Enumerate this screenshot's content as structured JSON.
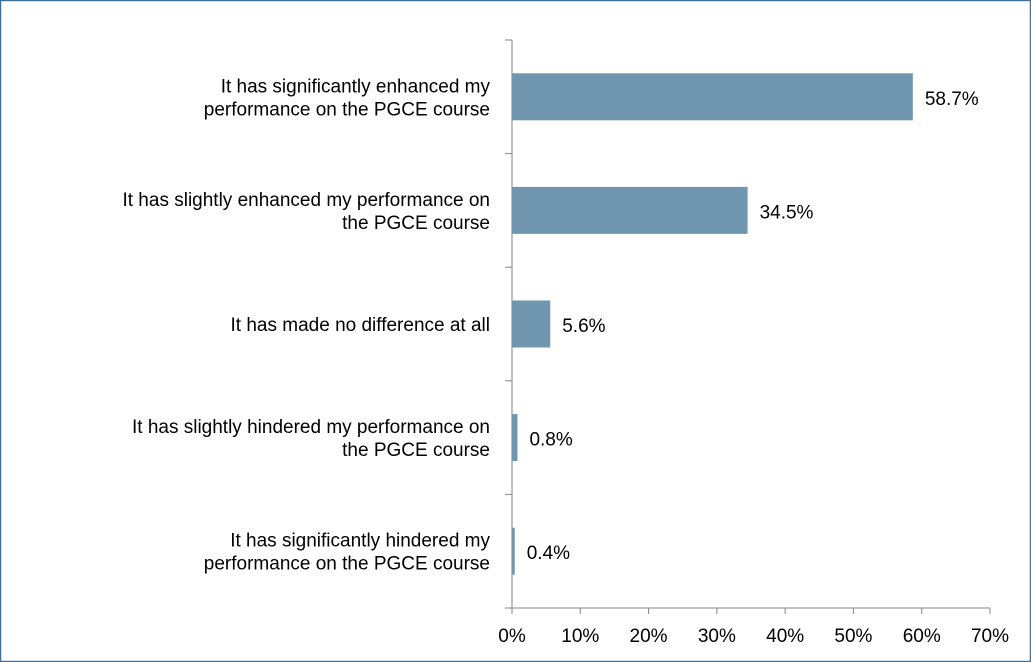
{
  "chart_data": {
    "type": "bar",
    "orientation": "horizontal",
    "categories": [
      "It has significantly enhanced my\nperformance on the PGCE course",
      "It has slightly enhanced my performance on\nthe PGCE course",
      "It has made no difference at all",
      "It has slightly hindered my performance on\nthe PGCE course",
      "It has significantly hindered my\nperformance on the PGCE course"
    ],
    "values": [
      58.7,
      34.5,
      5.6,
      0.8,
      0.4
    ],
    "value_labels": [
      "58.7%",
      "34.5%",
      "5.6%",
      "0.8%",
      "0.4%"
    ],
    "color": "#7196af",
    "xlim": [
      0,
      70
    ],
    "xticks": [
      {
        "value": 0,
        "label": "0%"
      },
      {
        "value": 10,
        "label": "10%"
      },
      {
        "value": 20,
        "label": "20%"
      },
      {
        "value": 30,
        "label": "30%"
      },
      {
        "value": 40,
        "label": "40%"
      },
      {
        "value": 50,
        "label": "50%"
      },
      {
        "value": 60,
        "label": "60%"
      },
      {
        "value": 70,
        "label": "70%"
      }
    ],
    "grid": false
  }
}
